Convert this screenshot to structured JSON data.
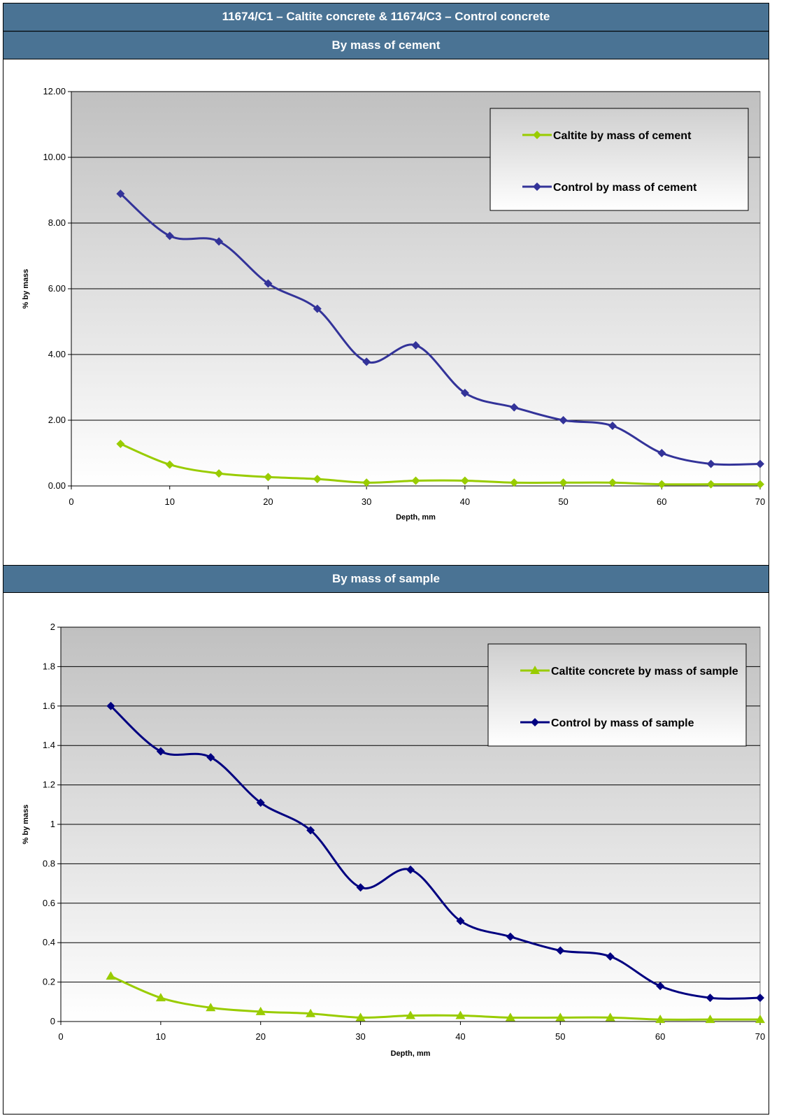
{
  "header": {
    "title": "11674/C1 – Caltite concrete & 11674/C3 – Control concrete",
    "section1": "By mass of cement",
    "section2": "By mass of sample"
  },
  "colors": {
    "header_bg": "#4a7394",
    "caltite": "#99cc00",
    "control_cement": "#333399",
    "control_sample": "#000080"
  },
  "chart_data": [
    {
      "type": "line",
      "title": "By mass of cement",
      "xlabel": "Depth, mm",
      "ylabel": "% by mass",
      "xlim": [
        0,
        70
      ],
      "ylim": [
        0,
        12
      ],
      "xticks": [
        "0",
        "10",
        "20",
        "30",
        "40",
        "50",
        "60",
        "70"
      ],
      "yticks": [
        "0.00",
        "2.00",
        "4.00",
        "6.00",
        "8.00",
        "10.00",
        "12.00"
      ],
      "grid": true,
      "legend": "top-right",
      "x": [
        5,
        10,
        15,
        20,
        25,
        30,
        35,
        40,
        45,
        50,
        55,
        60,
        65,
        70
      ],
      "series": [
        {
          "name": "Caltite by mass of cement",
          "marker": "diamond",
          "color": "#99cc00",
          "values": [
            1.28,
            0.65,
            0.38,
            0.27,
            0.21,
            0.1,
            0.16,
            0.16,
            0.1,
            0.1,
            0.1,
            0.05,
            0.05,
            0.05
          ]
        },
        {
          "name": "Control by mass of cement",
          "marker": "diamond",
          "color": "#333399",
          "values": [
            8.89,
            7.61,
            7.44,
            6.16,
            5.39,
            3.78,
            4.28,
            2.83,
            2.39,
            2.0,
            1.83,
            1.0,
            0.67,
            0.67
          ]
        }
      ]
    },
    {
      "type": "line",
      "title": "By mass of sample",
      "xlabel": "Depth, mm",
      "ylabel": "% by mass",
      "xlim": [
        0,
        70
      ],
      "ylim": [
        0,
        2
      ],
      "xticks": [
        "0",
        "10",
        "20",
        "30",
        "40",
        "50",
        "60",
        "70"
      ],
      "yticks": [
        "0",
        "0.2",
        "0.4",
        "0.6",
        "0.8",
        "1",
        "1.2",
        "1.4",
        "1.6",
        "1.8",
        "2"
      ],
      "grid": true,
      "legend": "top-right",
      "x": [
        5,
        10,
        15,
        20,
        25,
        30,
        35,
        40,
        45,
        50,
        55,
        60,
        65,
        70
      ],
      "series": [
        {
          "name": "Caltite concrete by mass of sample",
          "marker": "triangle",
          "color": "#99cc00",
          "values": [
            0.23,
            0.12,
            0.07,
            0.05,
            0.04,
            0.02,
            0.03,
            0.03,
            0.02,
            0.02,
            0.02,
            0.01,
            0.01,
            0.01
          ]
        },
        {
          "name": "Control by mass of sample",
          "marker": "diamond",
          "color": "#000080",
          "values": [
            1.6,
            1.37,
            1.34,
            1.11,
            0.97,
            0.68,
            0.77,
            0.51,
            0.43,
            0.36,
            0.33,
            0.18,
            0.12,
            0.12
          ]
        }
      ]
    }
  ]
}
